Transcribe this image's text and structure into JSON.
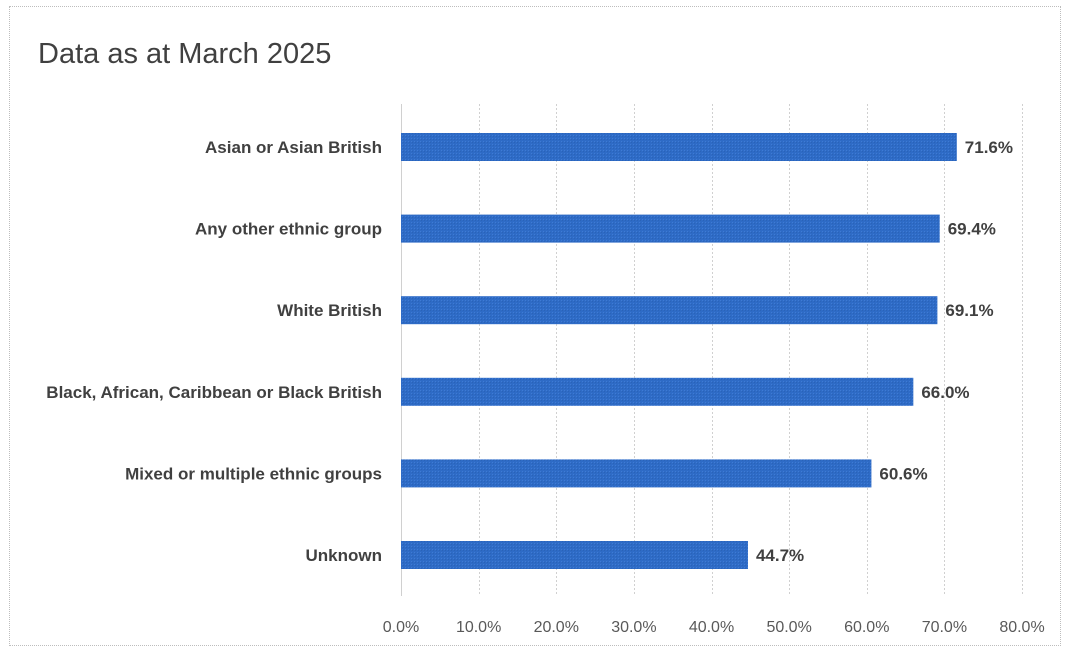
{
  "chart_data": {
    "type": "bar",
    "orientation": "horizontal",
    "title": "Data as at March 2025",
    "categories": [
      "Asian or Asian British",
      "Any other ethnic group",
      "White British",
      "Black, African, Caribbean or Black British",
      "Mixed or multiple ethnic groups",
      "Unknown"
    ],
    "values": [
      71.6,
      69.4,
      69.1,
      66.0,
      60.6,
      44.7
    ],
    "data_labels": [
      "71.6%",
      "69.4%",
      "69.1%",
      "66.0%",
      "60.6%",
      "44.7%"
    ],
    "xlim": [
      0,
      80
    ],
    "x_ticks": [
      0,
      10,
      20,
      30,
      40,
      50,
      60,
      70,
      80
    ],
    "x_tick_labels": [
      "0.0%",
      "10.0%",
      "20.0%",
      "30.0%",
      "40.0%",
      "50.0%",
      "60.0%",
      "70.0%",
      "80.0%"
    ],
    "xlabel": "",
    "ylabel": "",
    "grid": "vertical",
    "legend": "none",
    "bar_color": "#2E6BC6"
  }
}
